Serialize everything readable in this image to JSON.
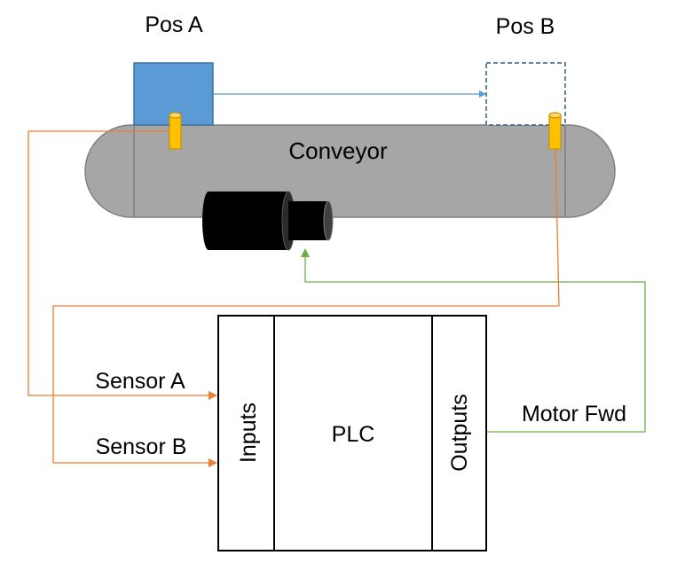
{
  "labels": {
    "pos_a": "Pos A",
    "pos_b": "Pos B",
    "conveyor": "Conveyor",
    "plc": "PLC",
    "inputs": "Inputs",
    "outputs": "Outputs",
    "sensor_a": "Sensor A",
    "sensor_b": "Sensor B",
    "motor_fwd": "Motor Fwd"
  },
  "colors": {
    "box_fill": "#5b9bd5",
    "box_stroke": "#41719c",
    "box_outline_dashed": "#2e5c8a",
    "move_arrow": "#5b9bd5",
    "conveyor_fill": "#a6a6a6",
    "conveyor_stroke": "#7f7f7f",
    "sensor_fill": "#ffc000",
    "sensor_stroke": "#c89200",
    "sensor_wire": "#ed7d31",
    "motor_wire": "#70ad47",
    "motor": "#000000",
    "plc_stroke": "#000000"
  }
}
